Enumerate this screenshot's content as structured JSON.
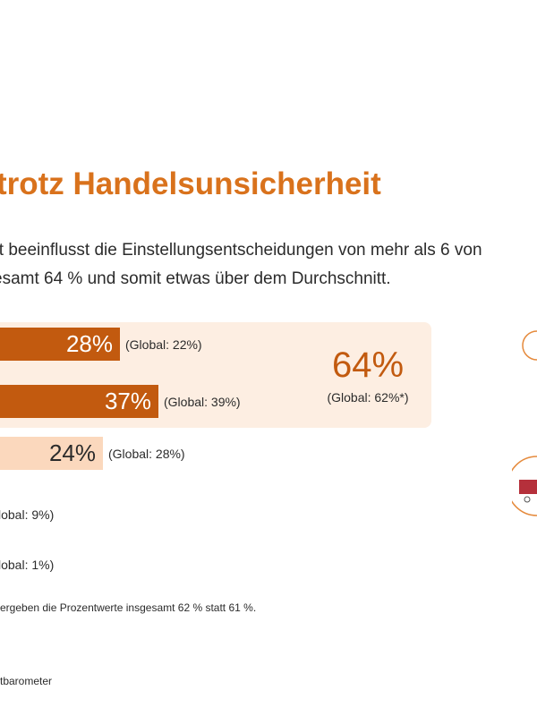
{
  "header": {
    "title": "trotz Handelsunsicherheit",
    "subtitle_line1": "eit beeinflusst die Einstellungsentscheidungen von mehr als 6 von",
    "subtitle_line2": "esamt 64 % und somit etwas über dem Durchschnitt."
  },
  "chart_data": {
    "type": "bar",
    "orientation": "horizontal",
    "xlim": [
      0,
      100
    ],
    "bars": [
      {
        "label": "28%",
        "value": 28,
        "global_label": "(Global:  22%)",
        "global_value": 22,
        "style": "dark",
        "highlighted": true
      },
      {
        "label": "37%",
        "value": 37,
        "global_label": "(Global:  39%)",
        "global_value": 39,
        "style": "dark",
        "highlighted": true
      },
      {
        "label": "24%",
        "value": 24,
        "global_label": "(Global:  28%)",
        "global_value": 28,
        "style": "light",
        "highlighted": false
      },
      {
        "label": "",
        "value": null,
        "global_label": "lobal:  9%)",
        "global_value": 9,
        "style": "none",
        "highlighted": false
      },
      {
        "label": "",
        "value": null,
        "global_label": "lobal:  1%)",
        "global_value": 1,
        "style": "none",
        "highlighted": false
      }
    ],
    "highlight_total": {
      "label": "64%",
      "value": 64,
      "global_label": "(Global:  62%*)",
      "global_value": 62
    }
  },
  "footnote": "ergeben die Prozentwerte insgesamt 62 % statt 61 %.",
  "source": "tbarometer",
  "colors": {
    "title": "#d9721c",
    "bar_dark": "#c25a0f",
    "bar_light": "#fbd8bd",
    "highlight_box": "#fdeee2",
    "icon_red": "#b5303b"
  }
}
